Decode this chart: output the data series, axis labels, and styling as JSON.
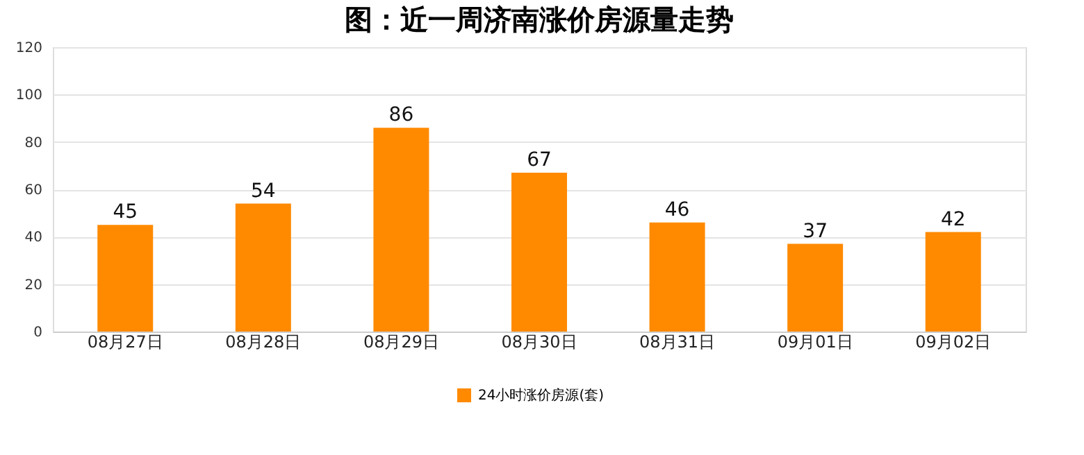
{
  "chart_data": {
    "type": "bar",
    "title": "图：近一周济南涨价房源量走势",
    "categories": [
      "08月27日",
      "08月28日",
      "08月29日",
      "08月30日",
      "08月31日",
      "09月01日",
      "09月02日"
    ],
    "series": [
      {
        "name": "24小时涨价房源(套)",
        "color": "#ff8a00",
        "values": [
          45,
          54,
          86,
          67,
          46,
          37,
          42
        ]
      }
    ],
    "ylim": [
      0,
      120
    ],
    "yticks": [
      0,
      20,
      40,
      60,
      80,
      100,
      120
    ],
    "grid": "y",
    "legend": "bottom",
    "data_labels": true
  }
}
